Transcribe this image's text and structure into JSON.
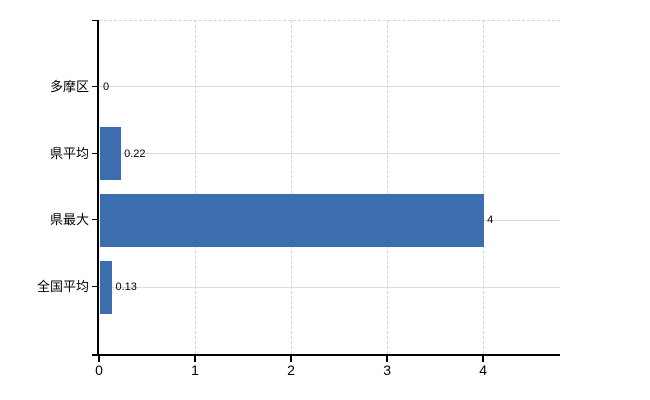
{
  "chart_data": {
    "type": "bar",
    "orientation": "horizontal",
    "title": "",
    "xlabel": "",
    "ylabel": "",
    "categories": [
      "多摩区",
      "県平均",
      "県最大",
      "全国平均"
    ],
    "values": [
      0,
      0.22,
      4,
      0.13
    ],
    "value_labels": [
      "0",
      "0.22",
      "4",
      "0.13"
    ],
    "x_ticks": [
      "0",
      "1",
      "2",
      "3",
      "4"
    ],
    "x_tick_values": [
      0,
      1,
      2,
      3,
      4
    ],
    "xlim": [
      0,
      4.8
    ],
    "grid": "on",
    "legend": "none",
    "colors": {
      "bar": "#3c6eae",
      "h_gridline": "#d7ded7",
      "v_gridline": "#d4d4d4",
      "axis": "#000000",
      "text": "#000000",
      "background": "#ffffff"
    }
  }
}
